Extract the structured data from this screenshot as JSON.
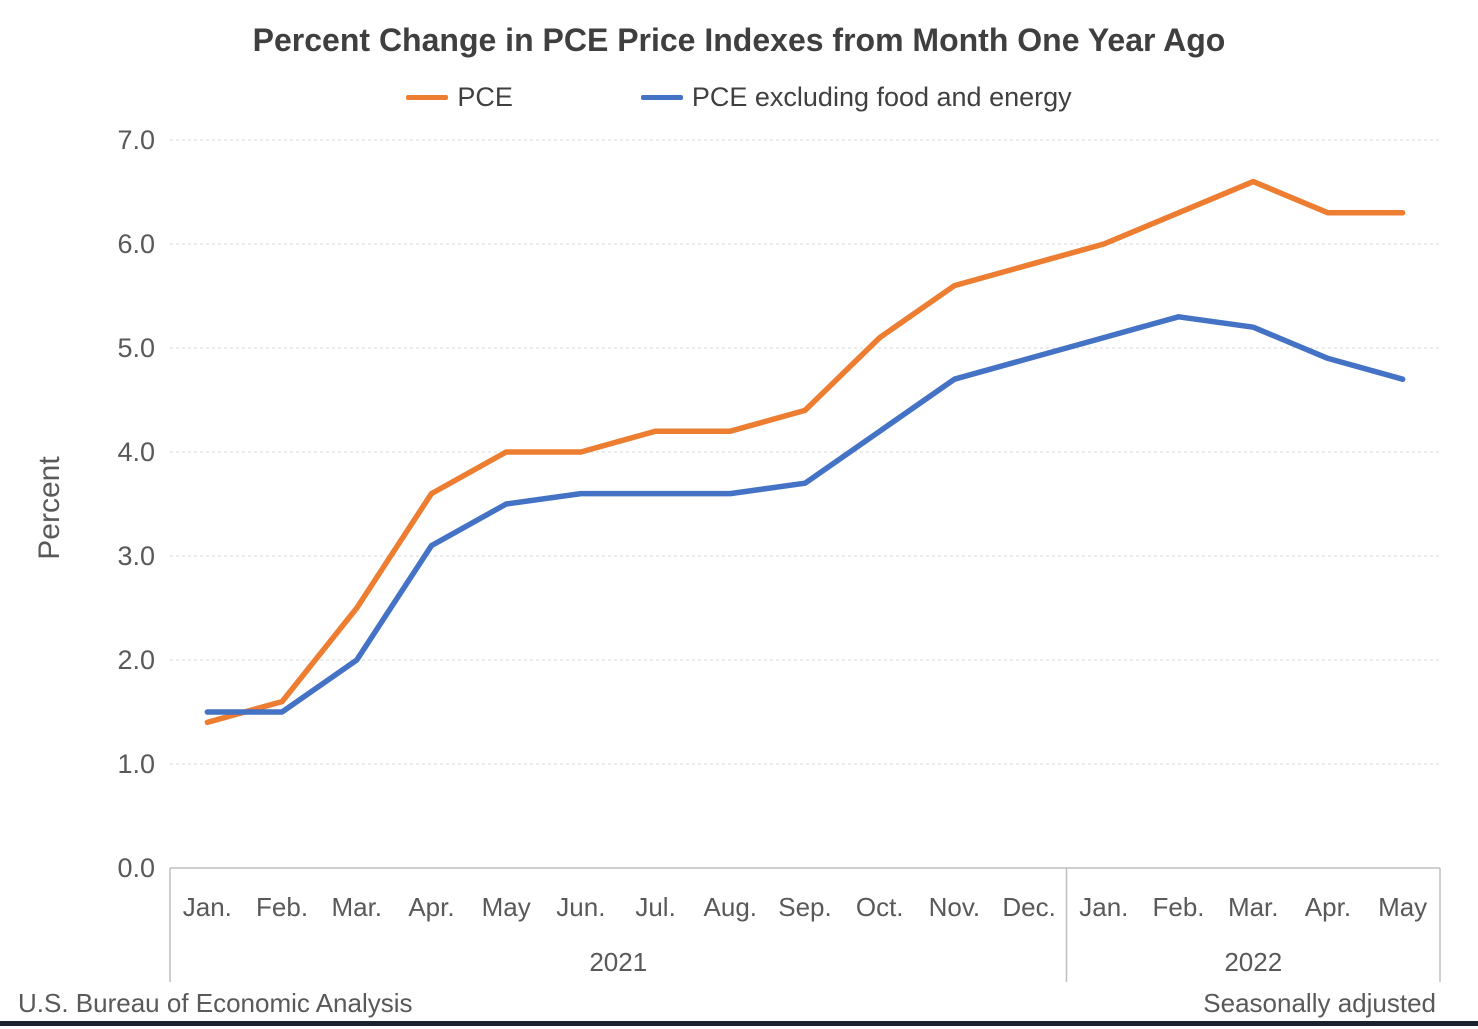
{
  "chart_data": {
    "type": "line",
    "title": "Percent Change in PCE Price Indexes from Month One Year Ago",
    "ylabel": "Percent",
    "ylim": [
      0,
      7
    ],
    "ytick_step": 1.0,
    "ytick_labels": [
      "0.0",
      "1.0",
      "2.0",
      "3.0",
      "4.0",
      "5.0",
      "6.0",
      "7.0"
    ],
    "grid": "horizontal-dashed",
    "legend_position": "top-center",
    "categories": [
      "Jan.",
      "Feb.",
      "Mar.",
      "Apr.",
      "May",
      "Jun.",
      "Jul.",
      "Aug.",
      "Sep.",
      "Oct.",
      "Nov.",
      "Dec.",
      "Jan.",
      "Feb.",
      "Mar.",
      "Apr.",
      "May"
    ],
    "year_groups": [
      {
        "label": "2021",
        "start": 0,
        "end": 11
      },
      {
        "label": "2022",
        "start": 12,
        "end": 16
      }
    ],
    "series": [
      {
        "name": "PCE",
        "color": "#ED7D31",
        "values": [
          1.4,
          1.6,
          2.5,
          3.6,
          4.0,
          4.0,
          4.2,
          4.2,
          4.4,
          5.1,
          5.6,
          5.8,
          6.0,
          6.3,
          6.6,
          6.3,
          6.3
        ]
      },
      {
        "name": "PCE excluding food and energy",
        "color": "#4472C4",
        "values": [
          1.5,
          1.5,
          2.0,
          3.1,
          3.5,
          3.6,
          3.6,
          3.6,
          3.7,
          4.2,
          4.7,
          4.9,
          5.1,
          5.3,
          5.2,
          4.9,
          4.7
        ]
      }
    ]
  },
  "footer": {
    "left": "U.S. Bureau of Economic Analysis",
    "right": "Seasonally adjusted"
  },
  "colors": {
    "grid": "#D9D9D9",
    "axis": "#BFBFBF",
    "tick_text": "#595959",
    "title_text": "#3F3F3F",
    "accent_bar": "#1C2230"
  }
}
